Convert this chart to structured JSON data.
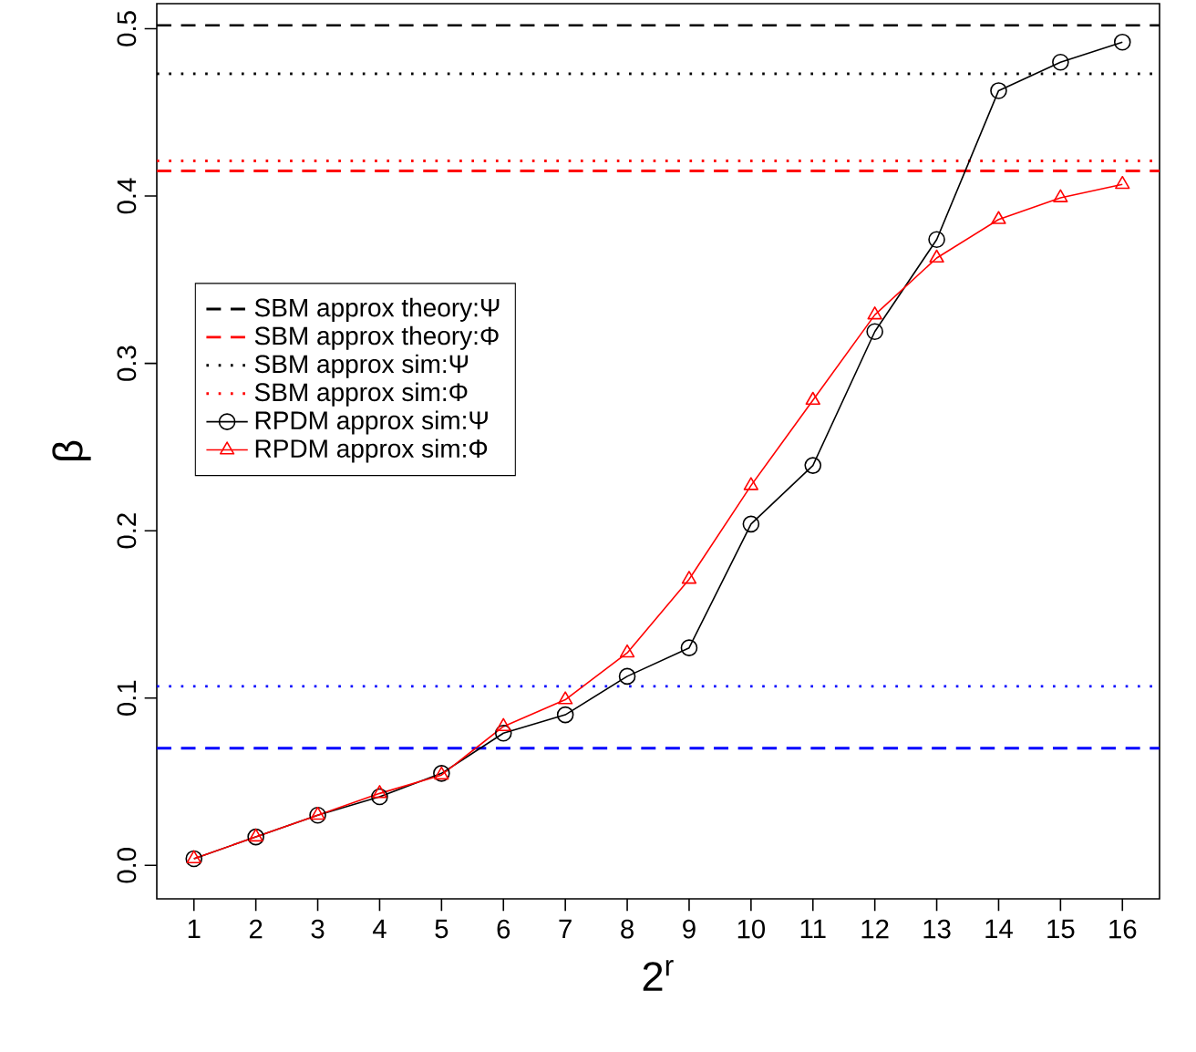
{
  "chart_data": {
    "type": "line",
    "xlabel": "2$^{r}$",
    "ylabel": "β",
    "x": [
      1,
      2,
      3,
      4,
      5,
      6,
      7,
      8,
      9,
      10,
      11,
      12,
      13,
      14,
      15,
      16
    ],
    "series": [
      {
        "name": "RPDM approx sim:Ψ",
        "color": "#000000",
        "marker": "circle",
        "values": [
          0.004,
          0.017,
          0.03,
          0.041,
          0.055,
          0.079,
          0.09,
          0.113,
          0.13,
          0.204,
          0.239,
          0.319,
          0.374,
          0.463,
          0.48,
          0.492
        ]
      },
      {
        "name": "RPDM approx sim:Φ",
        "color": "#ff0000",
        "marker": "triangle",
        "values": [
          0.004,
          0.017,
          0.03,
          0.043,
          0.054,
          0.083,
          0.099,
          0.127,
          0.171,
          0.227,
          0.278,
          0.329,
          0.363,
          0.386,
          0.399,
          0.407
        ]
      }
    ],
    "ref_lines": [
      {
        "axis": "y",
        "value": 0.502,
        "label": "SBM approx theory:Ψ",
        "color": "#000000",
        "line_style": "dashed"
      },
      {
        "axis": "y",
        "value": 0.415,
        "label": "SBM approx theory:Φ",
        "color": "#ff0000",
        "line_style": "dashed"
      },
      {
        "axis": "y",
        "value": 0.473,
        "label": "SBM approx sim:Ψ",
        "color": "#000000",
        "line_style": "dotted"
      },
      {
        "axis": "y",
        "value": 0.421,
        "label": "SBM approx sim:Φ",
        "color": "#ff0000",
        "line_style": "dotted"
      },
      {
        "axis": "y",
        "value": 0.107,
        "color": "#0000ff",
        "line_style": "dotted"
      },
      {
        "axis": "y",
        "value": 0.07,
        "color": "#0000ff",
        "line_style": "dashed"
      }
    ],
    "xlim": [
      0.4,
      16.6
    ],
    "ylim": [
      -0.02,
      0.515
    ],
    "xticks": [
      1,
      2,
      3,
      4,
      5,
      6,
      7,
      8,
      9,
      10,
      11,
      12,
      13,
      14,
      15,
      16
    ],
    "yticks": [
      {
        "value": 0,
        "label": "0.0"
      },
      0.1,
      0.2,
      0.3,
      0.4,
      0.5
    ],
    "legend": "left",
    "line_style": "solid"
  }
}
